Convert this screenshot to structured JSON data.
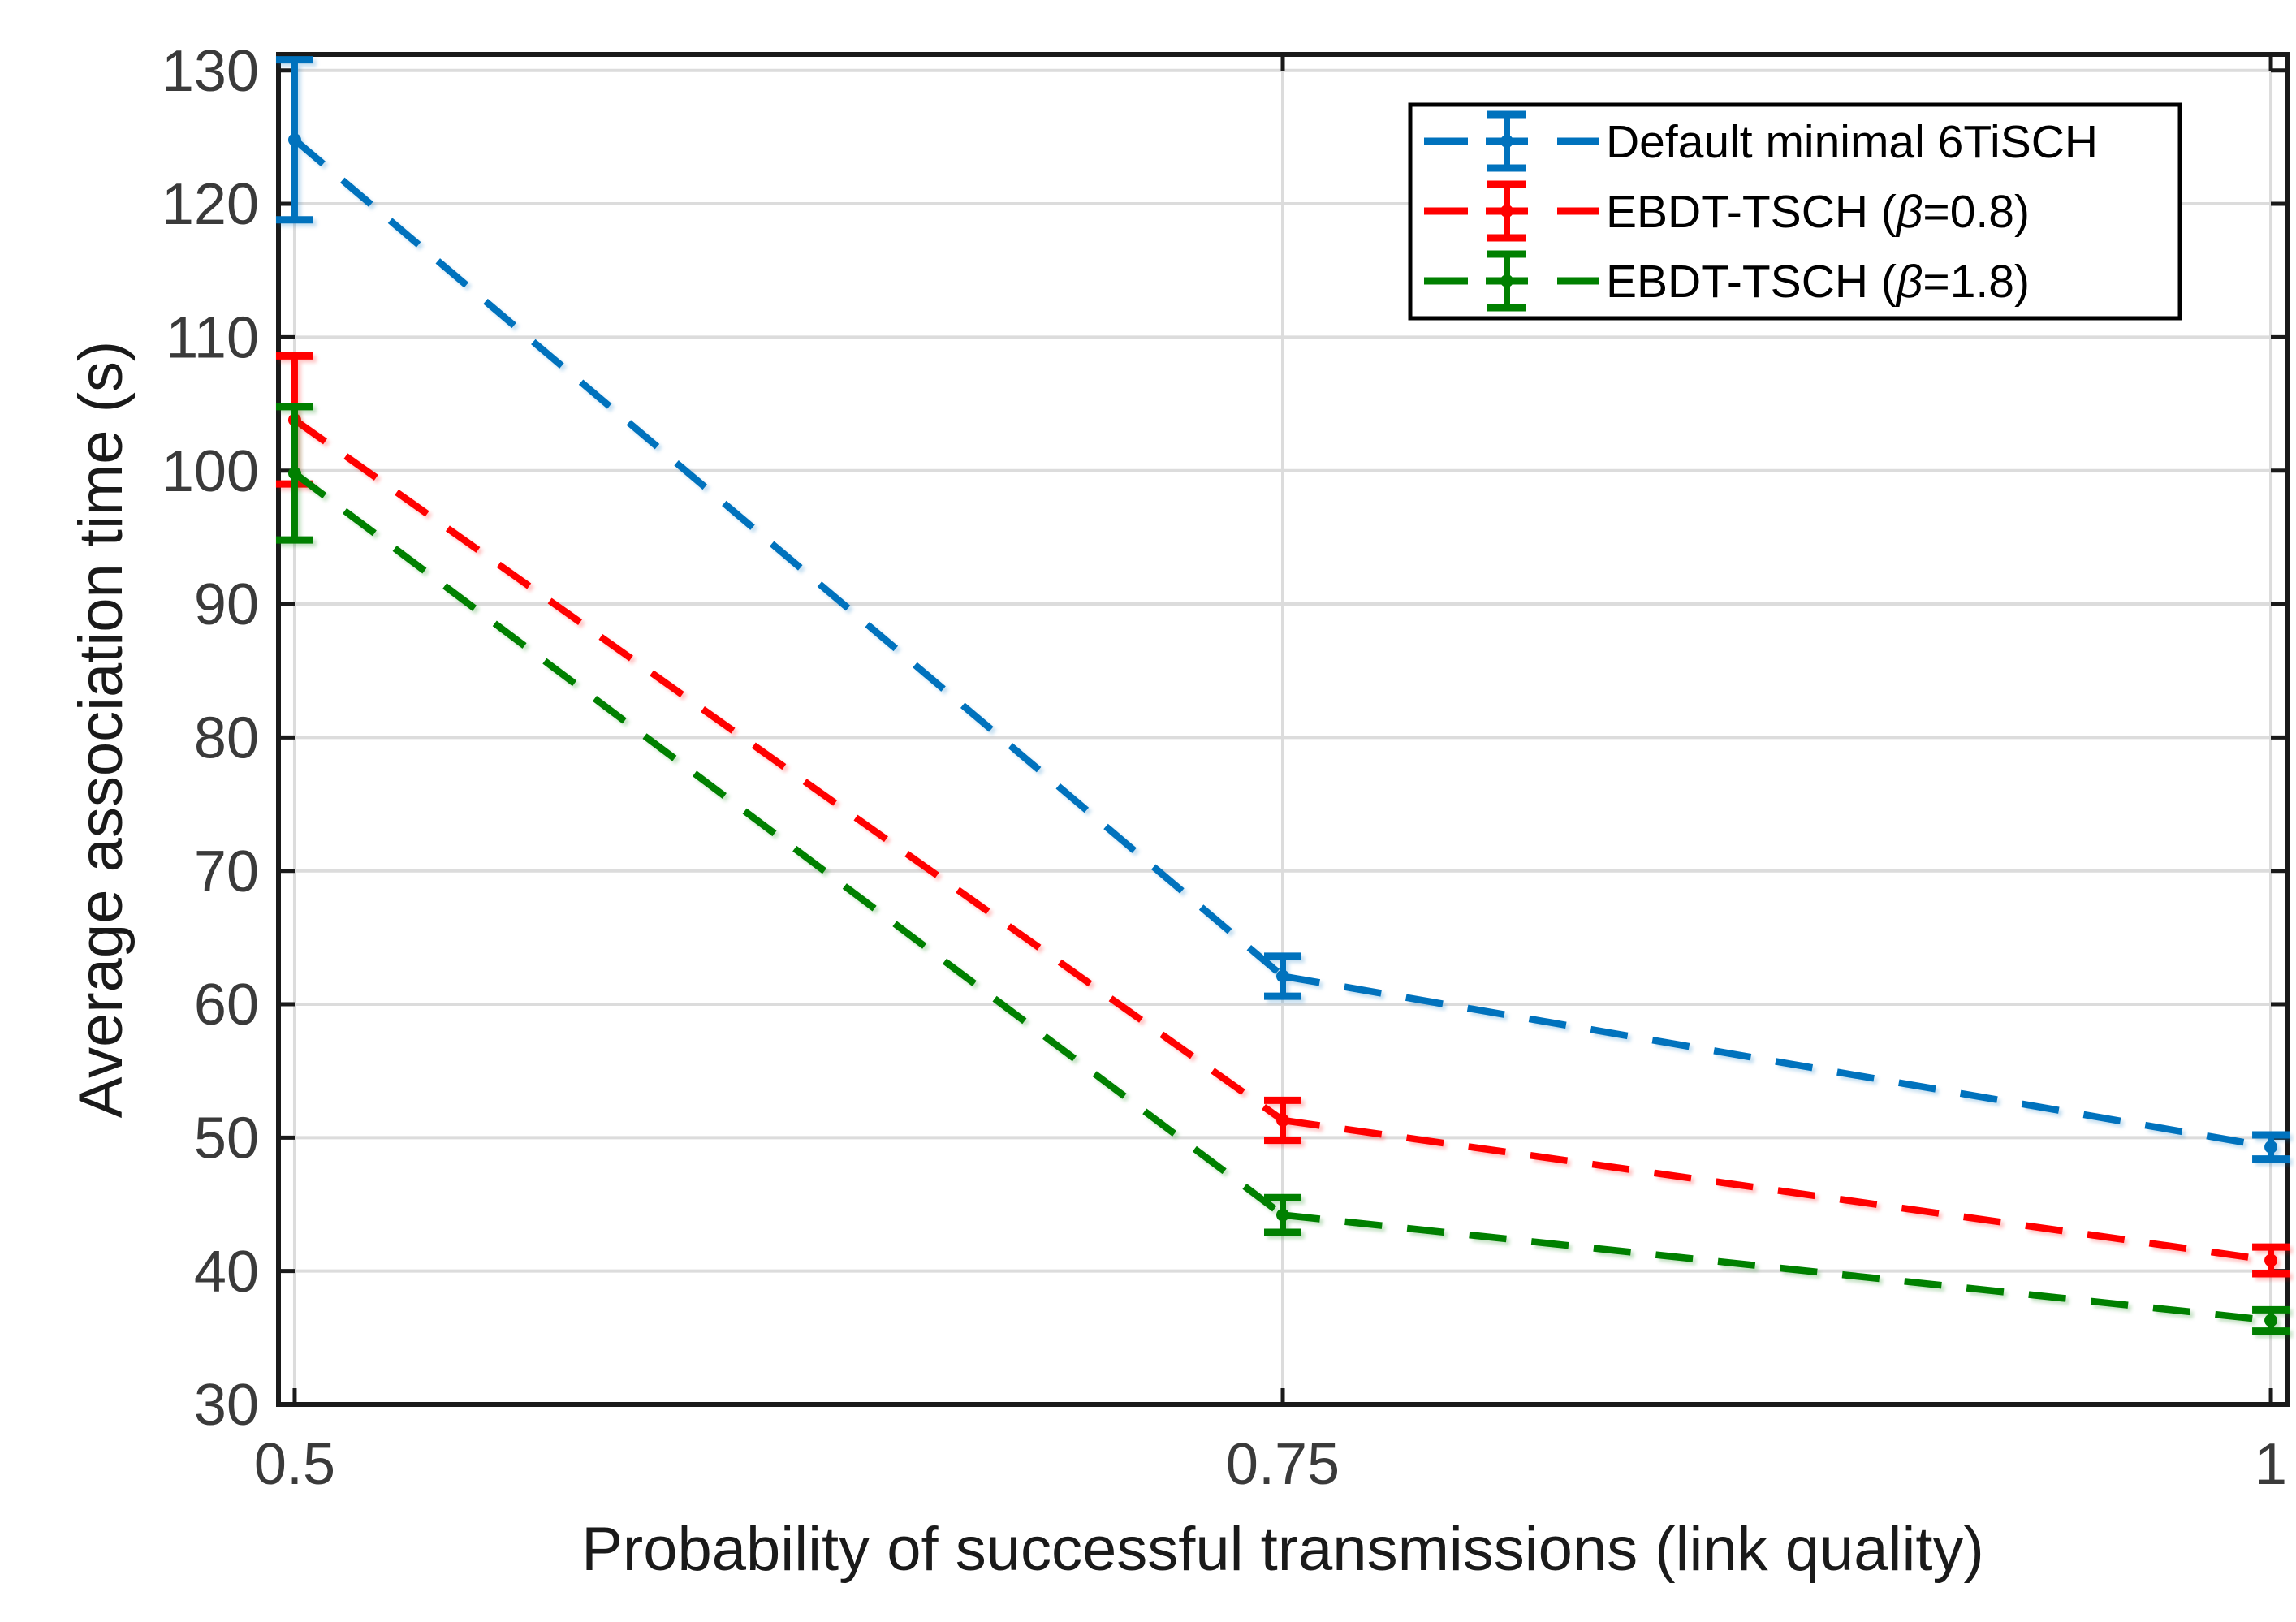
{
  "figure": {
    "background": "#ffffff",
    "axis_color": "#1a1a1a",
    "grid_color": "#dcdcdc",
    "tick_label_color": "#3a3a3a",
    "axis_label_color": "#1a1a1a",
    "legend_text_color": "#000000"
  },
  "chart_data": {
    "type": "line",
    "title": "",
    "xlabel": "Probability of successful transmissions (link quality)",
    "ylabel": "Average association time (s)",
    "x": [
      0.5,
      0.75,
      1
    ],
    "xtick_labels": [
      "0.5",
      "0.75",
      "1"
    ],
    "yticks": [
      30,
      40,
      50,
      60,
      70,
      80,
      90,
      100,
      110,
      120,
      130
    ],
    "xlim": [
      0.4959,
      1.0041
    ],
    "ylim": [
      30,
      131.2
    ],
    "grid": true,
    "legend_position": "top-right",
    "line_style": "dashed",
    "marker": "point",
    "series": [
      {
        "name": "Default minimal 6TiSCH",
        "color": "#0072BD",
        "values": [
          124.8,
          62.1,
          49.3
        ],
        "errors": [
          6.0,
          1.5,
          0.9
        ]
      },
      {
        "name": "EBDT-TSCH (β=0.8)",
        "color": "#FF0000",
        "values": [
          103.8,
          51.3,
          40.8
        ],
        "errors": [
          4.8,
          1.5,
          1.0
        ]
      },
      {
        "name": "EBDT-TSCH (β=1.8)",
        "color": "#008000",
        "values": [
          99.8,
          44.2,
          36.3
        ],
        "errors": [
          5.0,
          1.3,
          0.8
        ]
      }
    ]
  }
}
